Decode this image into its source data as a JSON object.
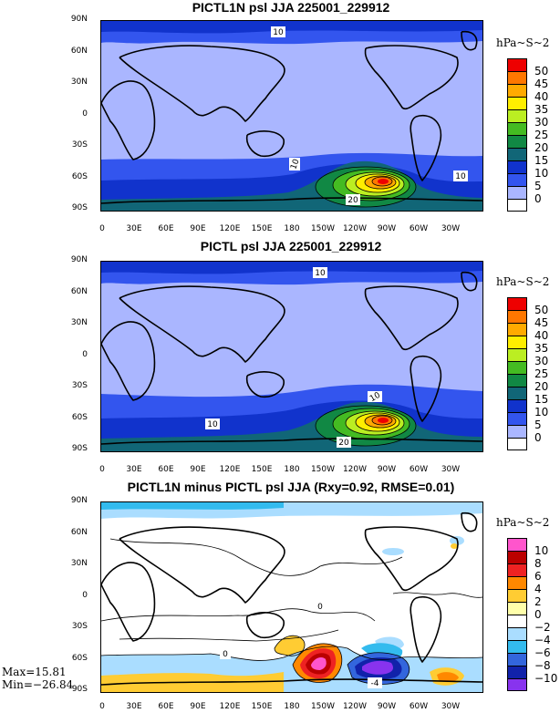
{
  "panels": [
    {
      "title": "PICTL1N psl JJA 225001_229912",
      "units": "hPa~S~2",
      "levels": [
        "50",
        "45",
        "40",
        "35",
        "30",
        "25",
        "20",
        "15",
        "10",
        "5",
        "0"
      ],
      "level_colors": [
        "#ee0000",
        "#ff7700",
        "#ffaa00",
        "#ffee00",
        "#bbee22",
        "#44bb22",
        "#118844",
        "#116677",
        "#1133cc",
        "#3355ee",
        "#aab6ff",
        "#ffffff"
      ],
      "contour_labels": [
        "10",
        "10",
        "10",
        "20"
      ]
    },
    {
      "title": "PICTL psl JJA 225001_229912",
      "units": "hPa~S~2",
      "levels": [
        "50",
        "45",
        "40",
        "35",
        "30",
        "25",
        "20",
        "15",
        "10",
        "5",
        "0"
      ],
      "level_colors": [
        "#ee0000",
        "#ff7700",
        "#ffaa00",
        "#ffee00",
        "#bbee22",
        "#44bb22",
        "#118844",
        "#116677",
        "#1133cc",
        "#3355ee",
        "#aab6ff",
        "#ffffff"
      ],
      "contour_labels": [
        "10",
        "10",
        "10",
        "20"
      ]
    },
    {
      "title": "PICTL1N minus PICTL psl JJA (Rxy=0.92, RMSE=0.01)",
      "units": "hPa~S~2",
      "levels": [
        "10",
        "8",
        "6",
        "4",
        "2",
        "0",
        "−2",
        "−4",
        "−6",
        "−8",
        "−10"
      ],
      "level_colors": [
        "#ff55cc",
        "#bb0000",
        "#ee2222",
        "#ff8800",
        "#ffcc33",
        "#ffffaa",
        "#ffffff",
        "#aaddff",
        "#33bbee",
        "#3366dd",
        "#1122aa",
        "#8833ee"
      ],
      "contour_labels": [
        "0",
        "0",
        "-4"
      ],
      "max_label": "Max=15.81",
      "min_label": "Min=−26.84"
    }
  ],
  "lat_ticks": [
    "90N",
    "60N",
    "30N",
    "0",
    "30S",
    "60S",
    "90S"
  ],
  "lon_ticks": [
    "0",
    "30E",
    "60E",
    "90E",
    "120E",
    "150E",
    "180",
    "150W",
    "120W",
    "90W",
    "60W",
    "30W"
  ]
}
